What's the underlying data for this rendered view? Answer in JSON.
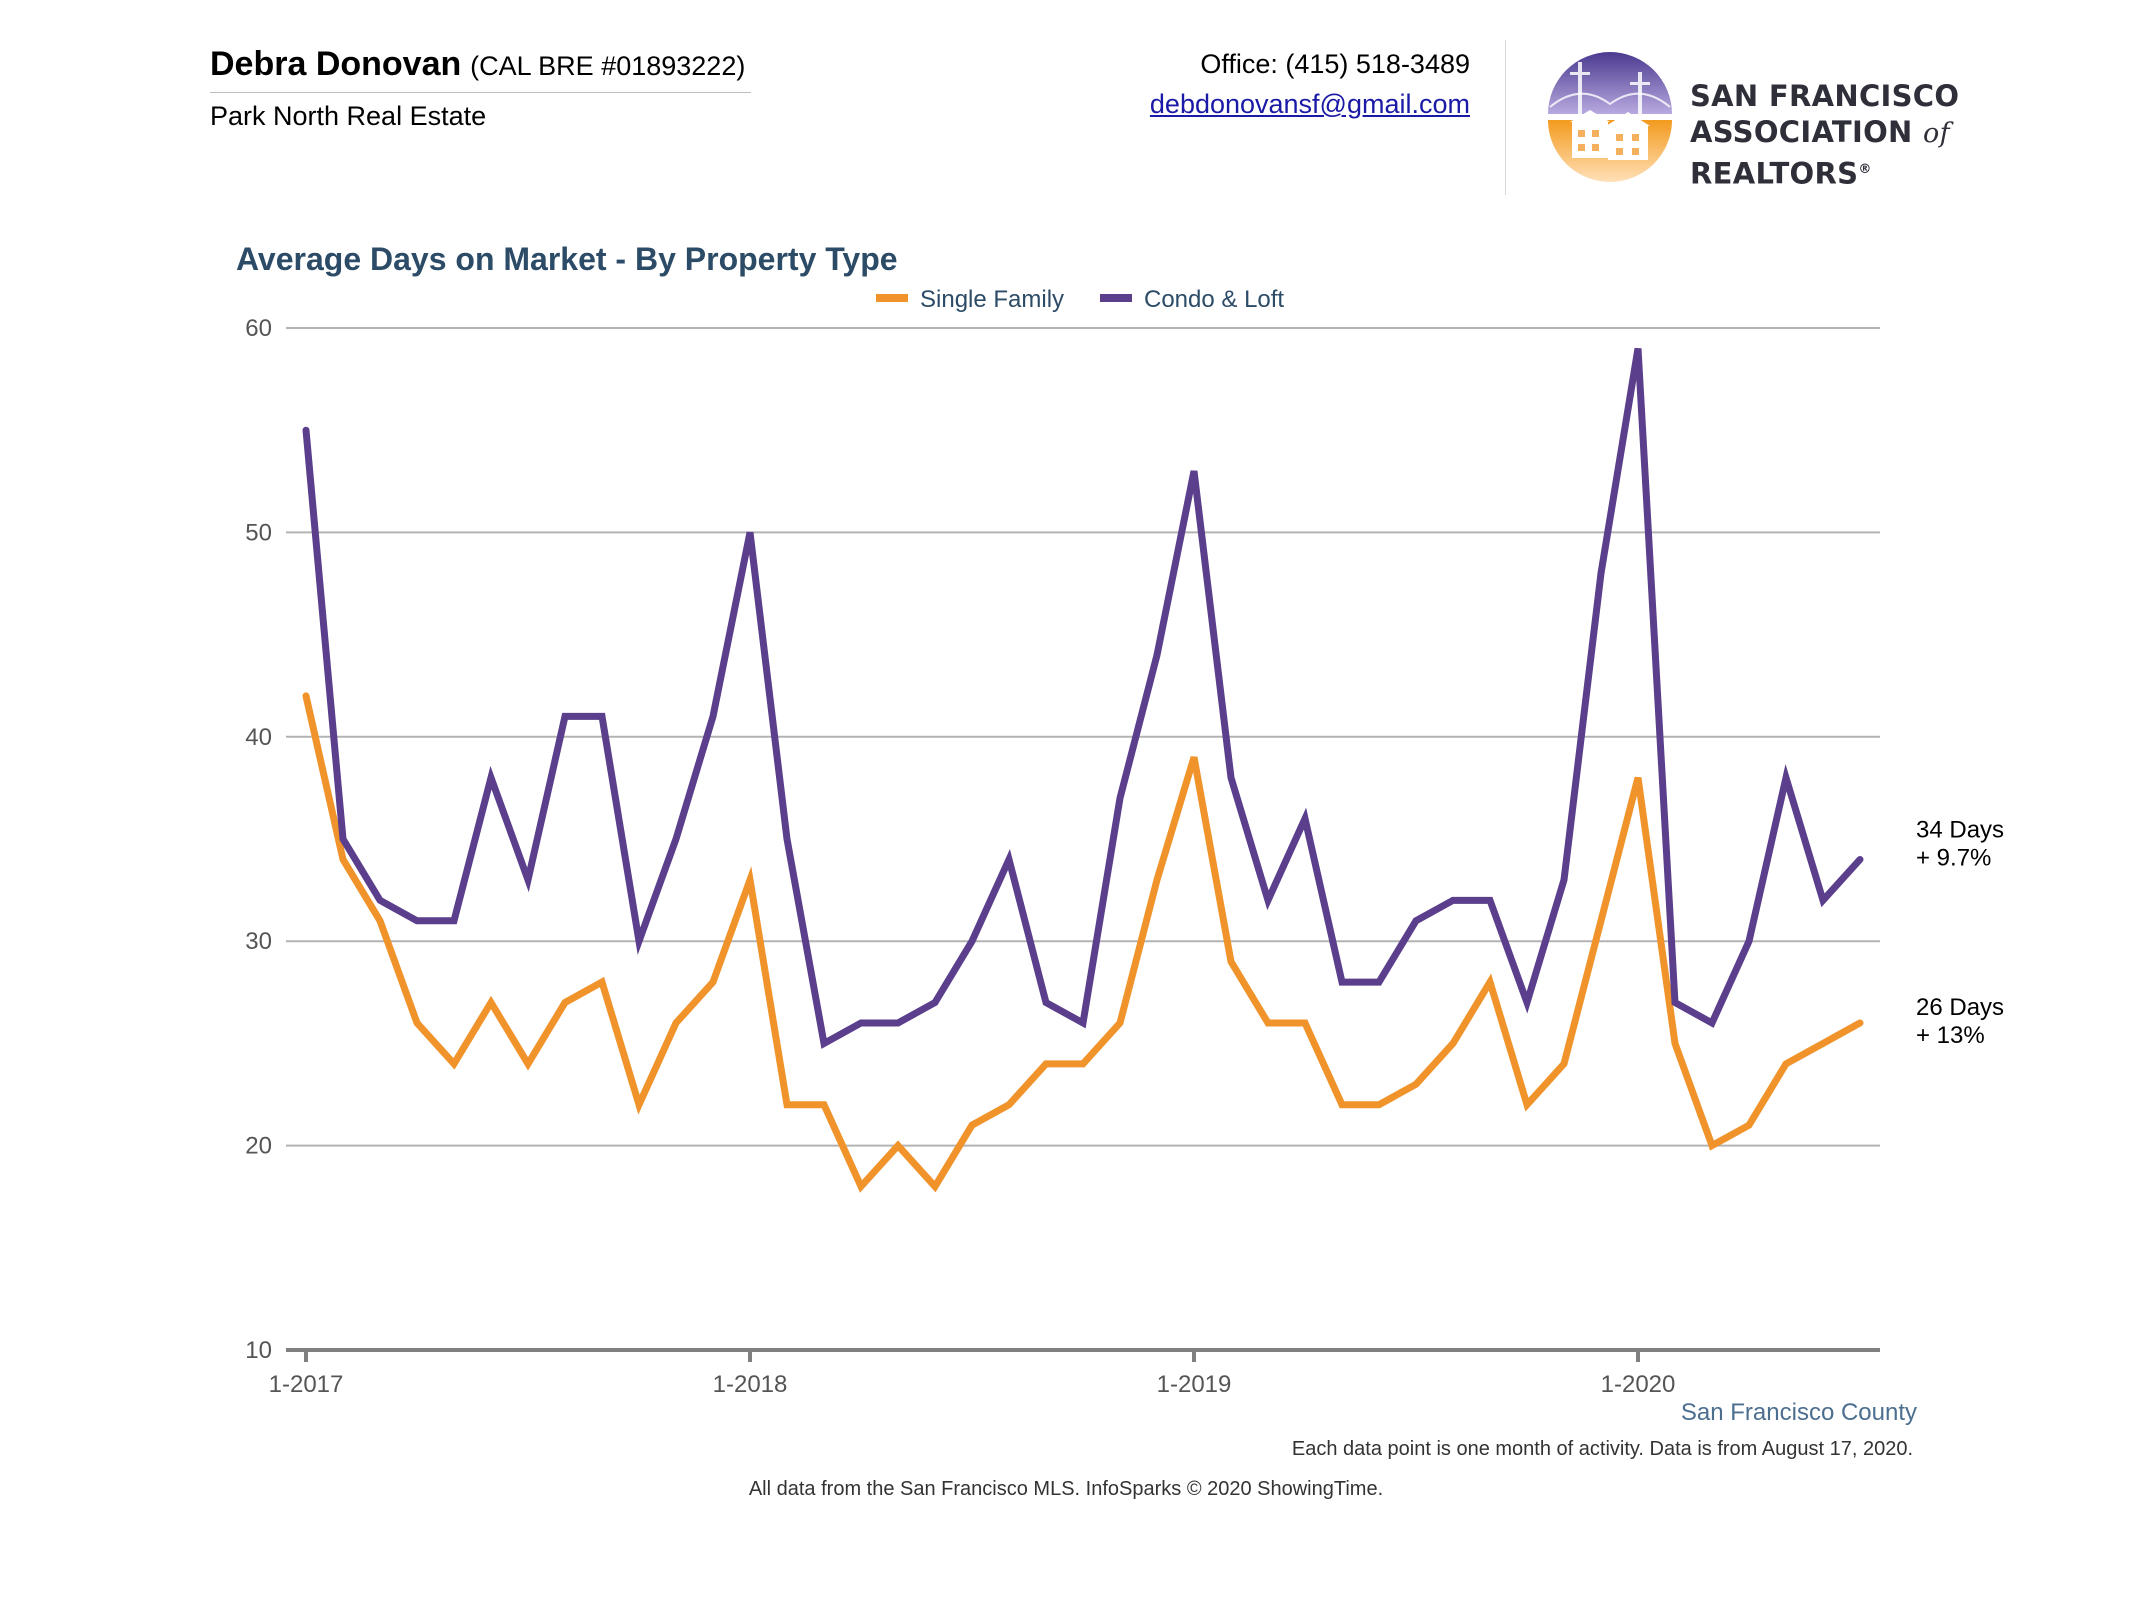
{
  "header": {
    "agent_name": "Debra Donovan",
    "license": "(CAL BRE #01893222)",
    "brokerage": "Park North Real Estate",
    "office_phone": "Office: (415) 518-3489",
    "email": "debdonovansf@gmail.com",
    "association_line1": "SAN FRANCISCO",
    "association_line2_pre": "ASSOCIATION",
    "association_line2_of": "of",
    "association_line2_post": "REALTORS",
    "registered_mark": "®"
  },
  "colors": {
    "single_family": "#f0932b",
    "condo_loft": "#5b3f8c",
    "grid": "#b3b3b3",
    "axis": "#7f7f7f",
    "title": "#2c4b67"
  },
  "chart_data": {
    "type": "line",
    "title": "Average Days on Market - By Property Type",
    "xlabel": "",
    "ylabel": "",
    "ylim": [
      10,
      60
    ],
    "yticks": [
      10,
      20,
      30,
      40,
      50,
      60
    ],
    "grid": true,
    "legend": "top-center",
    "x_tick_labels": [
      "1-2017",
      "1-2018",
      "1-2019",
      "1-2020"
    ],
    "x": [
      "2017-01",
      "2017-02",
      "2017-03",
      "2017-04",
      "2017-05",
      "2017-06",
      "2017-07",
      "2017-08",
      "2017-09",
      "2017-10",
      "2017-11",
      "2017-12",
      "2018-01",
      "2018-02",
      "2018-03",
      "2018-04",
      "2018-05",
      "2018-06",
      "2018-07",
      "2018-08",
      "2018-09",
      "2018-10",
      "2018-11",
      "2018-12",
      "2019-01",
      "2019-02",
      "2019-03",
      "2019-04",
      "2019-05",
      "2019-06",
      "2019-07",
      "2019-08",
      "2019-09",
      "2019-10",
      "2019-11",
      "2019-12",
      "2020-01",
      "2020-02",
      "2020-03",
      "2020-04",
      "2020-05",
      "2020-06",
      "2020-07"
    ],
    "series": [
      {
        "name": "Single Family",
        "values": [
          42,
          34,
          31,
          26,
          24,
          27,
          24,
          27,
          28,
          22,
          26,
          28,
          33,
          22,
          22,
          18,
          20,
          18,
          21,
          22,
          24,
          24,
          26,
          33,
          39,
          29,
          26,
          26,
          22,
          22,
          23,
          25,
          28,
          22,
          24,
          31,
          38,
          25,
          20,
          21,
          24,
          25,
          26
        ],
        "end_label_days": "26 Days",
        "end_label_change": "+ 13%"
      },
      {
        "name": "Condo & Loft",
        "values": [
          55,
          35,
          32,
          31,
          31,
          38,
          33,
          41,
          41,
          30,
          35,
          41,
          50,
          35,
          25,
          26,
          26,
          27,
          30,
          34,
          27,
          26,
          37,
          44,
          53,
          38,
          32,
          36,
          28,
          28,
          31,
          32,
          32,
          27,
          33,
          48,
          59,
          27,
          26,
          30,
          38,
          32,
          34
        ],
        "end_label_days": "34 Days",
        "end_label_change": "+ 9.7%"
      }
    ],
    "region_label": "San Francisco County",
    "note": "Each data point is one month of activity. Data is from August 17, 2020.",
    "source": "All data from the San Francisco MLS. InfoSparks © 2020 ShowingTime."
  }
}
